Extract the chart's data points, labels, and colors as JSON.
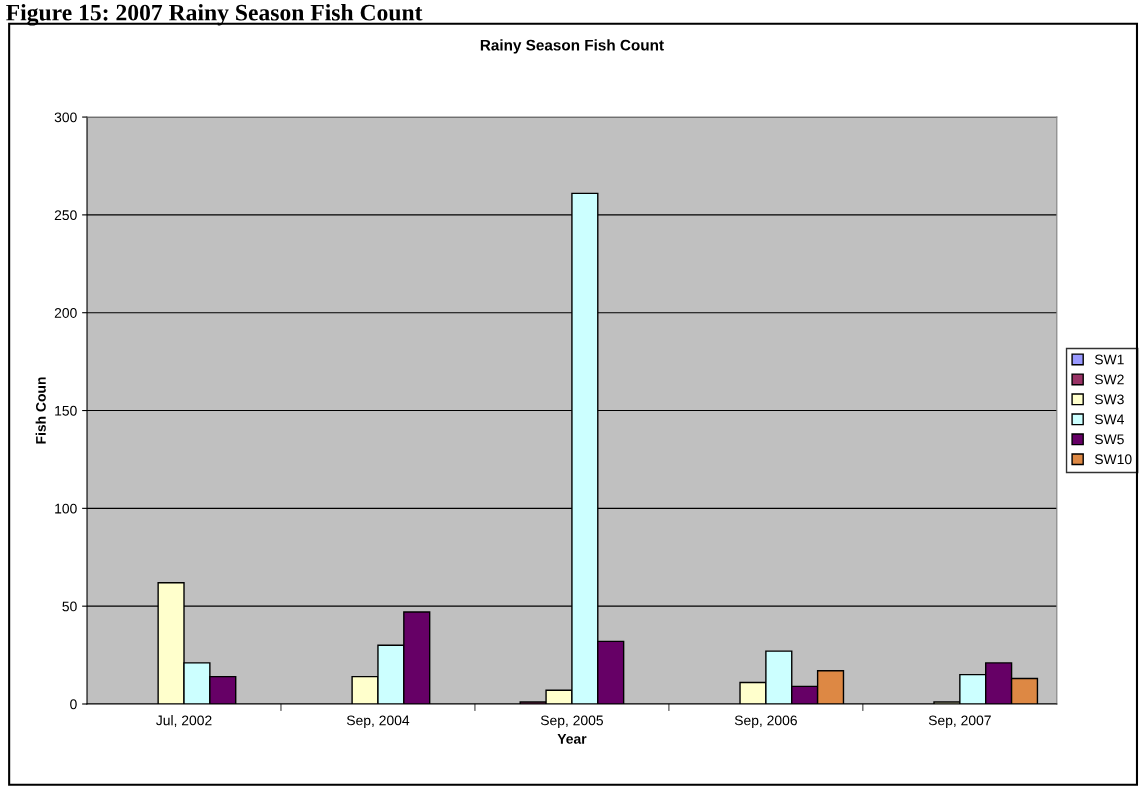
{
  "chart_data": {
    "type": "bar",
    "title": "Rainy Season Fish Count",
    "xlabel": "Year",
    "ylabel": "Fish Coun",
    "annotations": [
      "Figure 15: 2007 Rainy Season Fish Count"
    ],
    "categories": [
      "Jul, 2002",
      "Sep, 2004",
      "Sep, 2005",
      "Sep, 2006",
      "Sep, 2007"
    ],
    "series": [
      {
        "name": "SW1",
        "color": "#9999ff",
        "values": [
          null,
          null,
          null,
          null,
          null
        ]
      },
      {
        "name": "SW2",
        "color": "#993366",
        "values": [
          null,
          null,
          1,
          null,
          null
        ]
      },
      {
        "name": "SW3",
        "color": "#ffffcc",
        "values": [
          62,
          14,
          7,
          11,
          1
        ]
      },
      {
        "name": "SW4",
        "color": "#ccffff",
        "values": [
          21,
          30,
          261,
          27,
          15
        ]
      },
      {
        "name": "SW5",
        "color": "#660066",
        "values": [
          14,
          47,
          32,
          9,
          21
        ]
      },
      {
        "name": "SW10",
        "color": "#dd8844",
        "values": [
          null,
          null,
          null,
          17,
          13
        ]
      }
    ],
    "ylim": [
      0,
      300
    ],
    "yticks": [
      0,
      50,
      100,
      150,
      200,
      250,
      300
    ],
    "grid": "y",
    "legend": "right"
  }
}
